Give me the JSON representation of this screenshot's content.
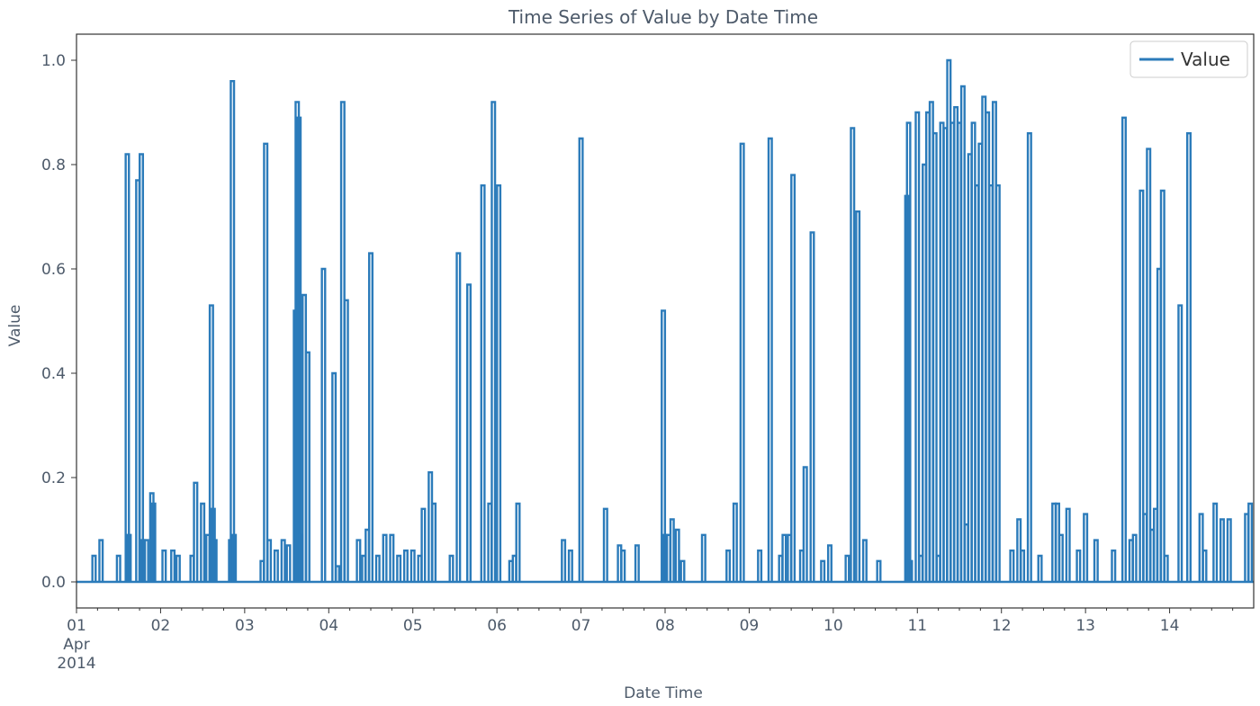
{
  "chart_data": {
    "type": "line",
    "title": "Time Series of Value by Date Time",
    "xlabel": "Date Time",
    "ylabel": "Value",
    "x_axis": {
      "start": "2014-04-01",
      "end": "2014-04-15",
      "tick_labels": [
        "01",
        "02",
        "03",
        "04",
        "05",
        "06",
        "07",
        "08",
        "09",
        "10",
        "11",
        "12",
        "13",
        "14"
      ],
      "first_tick_extra": [
        "Apr",
        "2014"
      ]
    },
    "y_axis": {
      "min": -0.05,
      "max": 1.05,
      "ticks": [
        0.0,
        0.2,
        0.4,
        0.6,
        0.8,
        1.0
      ],
      "tick_labels": [
        "0.0",
        "0.2",
        "0.4",
        "0.6",
        "0.8",
        "1.0"
      ]
    },
    "grid": false,
    "legend_position": "top-right",
    "series": [
      {
        "name": "Value",
        "color": "#2b7bba",
        "points": [
          [
            "2014-04-01 05:00",
            0.05
          ],
          [
            "2014-04-01 07:00",
            0.08
          ],
          [
            "2014-04-01 12:00",
            0.05
          ],
          [
            "2014-04-01 14:30",
            0.82
          ],
          [
            "2014-04-01 15:00",
            0.09
          ],
          [
            "2014-04-01 17:30",
            0.77
          ],
          [
            "2014-04-01 18:30",
            0.82
          ],
          [
            "2014-04-01 19:00",
            0.08
          ],
          [
            "2014-04-01 20:00",
            0.08
          ],
          [
            "2014-04-01 21:30",
            0.17
          ],
          [
            "2014-04-01 22:00",
            0.15
          ],
          [
            "2014-04-02 01:00",
            0.06
          ],
          [
            "2014-04-02 03:30",
            0.06
          ],
          [
            "2014-04-02 05:00",
            0.05
          ],
          [
            "2014-04-02 09:00",
            0.05
          ],
          [
            "2014-04-02 10:00",
            0.19
          ],
          [
            "2014-04-02 12:00",
            0.15
          ],
          [
            "2014-04-02 13:30",
            0.09
          ],
          [
            "2014-04-02 14:30",
            0.53
          ],
          [
            "2014-04-02 15:00",
            0.14
          ],
          [
            "2014-04-02 15:30",
            0.08
          ],
          [
            "2014-04-02 20:00",
            0.08
          ],
          [
            "2014-04-02 20:30",
            0.96
          ],
          [
            "2014-04-02 21:00",
            0.09
          ],
          [
            "2014-04-03 05:00",
            0.04
          ],
          [
            "2014-04-03 06:00",
            0.84
          ],
          [
            "2014-04-03 07:00",
            0.08
          ],
          [
            "2014-04-03 09:00",
            0.06
          ],
          [
            "2014-04-03 11:00",
            0.08
          ],
          [
            "2014-04-03 12:30",
            0.07
          ],
          [
            "2014-04-03 14:30",
            0.52
          ],
          [
            "2014-04-03 15:00",
            0.92
          ],
          [
            "2014-04-03 15:30",
            0.89
          ],
          [
            "2014-04-03 16:00",
            0.09
          ],
          [
            "2014-04-03 17:00",
            0.55
          ],
          [
            "2014-04-03 18:00",
            0.44
          ],
          [
            "2014-04-03 22:30",
            0.6
          ],
          [
            "2014-04-04 01:30",
            0.4
          ],
          [
            "2014-04-04 02:30",
            0.03
          ],
          [
            "2014-04-04 04:00",
            0.92
          ],
          [
            "2014-04-04 05:00",
            0.54
          ],
          [
            "2014-04-04 08:30",
            0.08
          ],
          [
            "2014-04-04 10:00",
            0.05
          ],
          [
            "2014-04-04 11:00",
            0.1
          ],
          [
            "2014-04-04 12:00",
            0.63
          ],
          [
            "2014-04-04 14:00",
            0.05
          ],
          [
            "2014-04-04 16:00",
            0.09
          ],
          [
            "2014-04-04 18:00",
            0.09
          ],
          [
            "2014-04-04 20:00",
            0.05
          ],
          [
            "2014-04-04 22:00",
            0.06
          ],
          [
            "2014-04-05 00:00",
            0.06
          ],
          [
            "2014-04-05 02:00",
            0.05
          ],
          [
            "2014-04-05 03:00",
            0.14
          ],
          [
            "2014-04-05 05:00",
            0.21
          ],
          [
            "2014-04-05 06:00",
            0.15
          ],
          [
            "2014-04-05 11:00",
            0.05
          ],
          [
            "2014-04-05 13:00",
            0.63
          ],
          [
            "2014-04-05 16:00",
            0.57
          ],
          [
            "2014-04-05 20:00",
            0.76
          ],
          [
            "2014-04-05 22:00",
            0.15
          ],
          [
            "2014-04-05 23:00",
            0.92
          ],
          [
            "2014-04-06 00:30",
            0.76
          ],
          [
            "2014-04-06 04:00",
            0.04
          ],
          [
            "2014-04-06 05:00",
            0.05
          ],
          [
            "2014-04-06 06:00",
            0.15
          ],
          [
            "2014-04-06 19:00",
            0.08
          ],
          [
            "2014-04-06 21:00",
            0.06
          ],
          [
            "2014-04-07 00:00",
            0.85
          ],
          [
            "2014-04-07 07:00",
            0.14
          ],
          [
            "2014-04-07 11:00",
            0.07
          ],
          [
            "2014-04-07 12:00",
            0.06
          ],
          [
            "2014-04-07 16:00",
            0.07
          ],
          [
            "2014-04-07 23:30",
            0.52
          ],
          [
            "2014-04-08 00:00",
            0.09
          ],
          [
            "2014-04-08 01:00",
            0.09
          ],
          [
            "2014-04-08 02:00",
            0.12
          ],
          [
            "2014-04-08 03:30",
            0.1
          ],
          [
            "2014-04-08 05:00",
            0.04
          ],
          [
            "2014-04-08 11:00",
            0.09
          ],
          [
            "2014-04-08 18:00",
            0.06
          ],
          [
            "2014-04-08 20:00",
            0.15
          ],
          [
            "2014-04-08 22:00",
            0.84
          ],
          [
            "2014-04-09 03:00",
            0.06
          ],
          [
            "2014-04-09 06:00",
            0.85
          ],
          [
            "2014-04-09 09:00",
            0.05
          ],
          [
            "2014-04-09 10:00",
            0.09
          ],
          [
            "2014-04-09 11:30",
            0.09
          ],
          [
            "2014-04-09 12:30",
            0.78
          ],
          [
            "2014-04-09 15:00",
            0.06
          ],
          [
            "2014-04-09 16:00",
            0.22
          ],
          [
            "2014-04-09 18:00",
            0.67
          ],
          [
            "2014-04-09 21:00",
            0.04
          ],
          [
            "2014-04-09 23:00",
            0.07
          ],
          [
            "2014-04-10 04:00",
            0.05
          ],
          [
            "2014-04-10 05:30",
            0.87
          ],
          [
            "2014-04-10 07:00",
            0.71
          ],
          [
            "2014-04-10 09:00",
            0.08
          ],
          [
            "2014-04-10 13:00",
            0.04
          ],
          [
            "2014-04-10 21:00",
            0.74
          ],
          [
            "2014-04-10 21:30",
            0.88
          ],
          [
            "2014-04-10 22:00",
            0.04
          ],
          [
            "2014-04-11 00:00",
            0.9
          ],
          [
            "2014-04-11 01:00",
            0.05
          ],
          [
            "2014-04-11 02:00",
            0.8
          ],
          [
            "2014-04-11 03:00",
            0.9
          ],
          [
            "2014-04-11 04:00",
            0.92
          ],
          [
            "2014-04-11 05:00",
            0.86
          ],
          [
            "2014-04-11 06:00",
            0.05
          ],
          [
            "2014-04-11 07:00",
            0.88
          ],
          [
            "2014-04-11 08:00",
            0.87
          ],
          [
            "2014-04-11 09:00",
            1.0
          ],
          [
            "2014-04-11 10:00",
            0.88
          ],
          [
            "2014-04-11 11:00",
            0.91
          ],
          [
            "2014-04-11 12:00",
            0.88
          ],
          [
            "2014-04-11 13:00",
            0.95
          ],
          [
            "2014-04-11 14:00",
            0.11
          ],
          [
            "2014-04-11 15:00",
            0.82
          ],
          [
            "2014-04-11 16:00",
            0.88
          ],
          [
            "2014-04-11 17:00",
            0.76
          ],
          [
            "2014-04-11 18:00",
            0.84
          ],
          [
            "2014-04-11 19:00",
            0.93
          ],
          [
            "2014-04-11 20:00",
            0.9
          ],
          [
            "2014-04-11 21:00",
            0.76
          ],
          [
            "2014-04-11 22:00",
            0.92
          ],
          [
            "2014-04-11 23:00",
            0.76
          ],
          [
            "2014-04-12 03:00",
            0.06
          ],
          [
            "2014-04-12 05:00",
            0.12
          ],
          [
            "2014-04-12 06:00",
            0.06
          ],
          [
            "2014-04-12 08:00",
            0.86
          ],
          [
            "2014-04-12 11:00",
            0.05
          ],
          [
            "2014-04-12 15:00",
            0.15
          ],
          [
            "2014-04-12 16:00",
            0.15
          ],
          [
            "2014-04-12 17:00",
            0.09
          ],
          [
            "2014-04-12 19:00",
            0.14
          ],
          [
            "2014-04-12 22:00",
            0.06
          ],
          [
            "2014-04-13 00:00",
            0.13
          ],
          [
            "2014-04-13 03:00",
            0.08
          ],
          [
            "2014-04-13 08:00",
            0.06
          ],
          [
            "2014-04-13 11:00",
            0.89
          ],
          [
            "2014-04-13 13:00",
            0.08
          ],
          [
            "2014-04-13 14:00",
            0.09
          ],
          [
            "2014-04-13 16:00",
            0.75
          ],
          [
            "2014-04-13 17:00",
            0.13
          ],
          [
            "2014-04-13 18:00",
            0.83
          ],
          [
            "2014-04-13 19:00",
            0.1
          ],
          [
            "2014-04-13 20:00",
            0.14
          ],
          [
            "2014-04-13 21:00",
            0.6
          ],
          [
            "2014-04-13 22:00",
            0.75
          ],
          [
            "2014-04-13 23:00",
            0.05
          ],
          [
            "2014-04-14 03:00",
            0.53
          ],
          [
            "2014-04-14 05:30",
            0.86
          ],
          [
            "2014-04-14 09:00",
            0.13
          ],
          [
            "2014-04-14 10:00",
            0.06
          ],
          [
            "2014-04-14 13:00",
            0.15
          ],
          [
            "2014-04-14 15:00",
            0.12
          ],
          [
            "2014-04-14 17:00",
            0.12
          ],
          [
            "2014-04-14 22:00",
            0.13
          ],
          [
            "2014-04-14 23:00",
            0.15
          ]
        ]
      }
    ]
  }
}
